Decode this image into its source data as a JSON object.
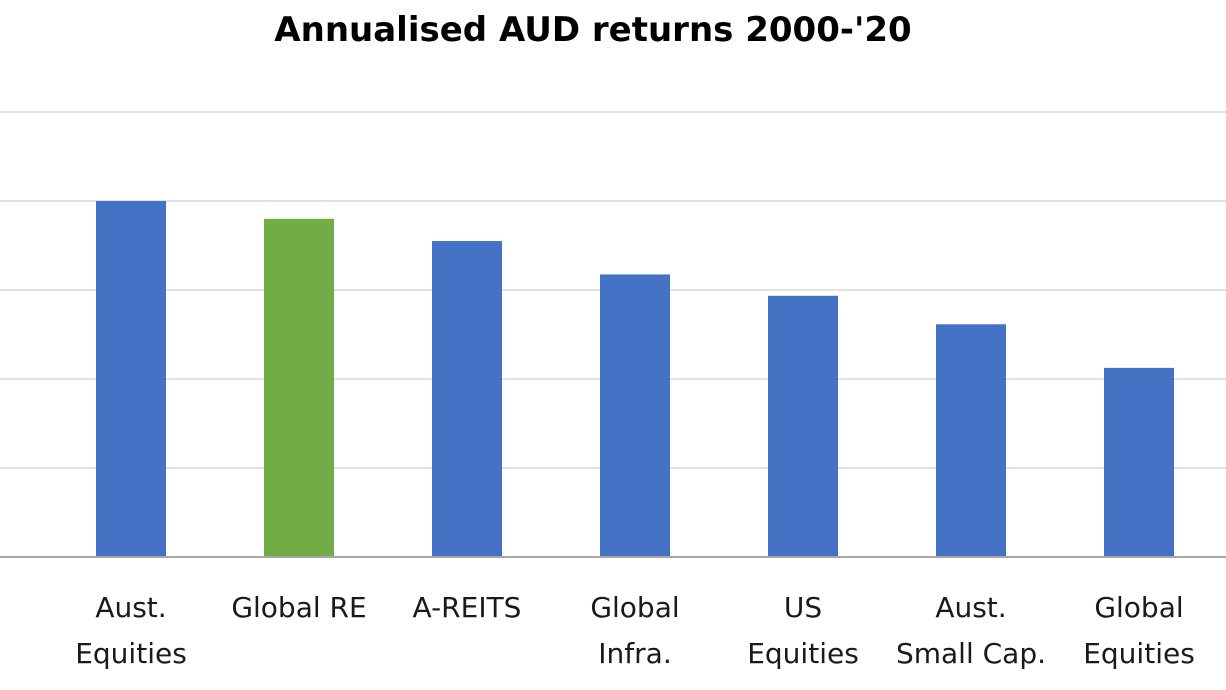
{
  "chart_data": {
    "type": "bar",
    "title": "Annualised AUD returns 2000-'20",
    "xlabel": "",
    "ylabel": "",
    "categories": [
      [
        "Aust.",
        "Equities"
      ],
      [
        "Global RE"
      ],
      [
        "A-REITS"
      ],
      [
        "Global",
        "Infra."
      ],
      [
        "US",
        "Equities"
      ],
      [
        "Aust.",
        "Small Cap."
      ],
      [
        "Global",
        "Equities"
      ]
    ],
    "values": [
      8.0,
      7.6,
      7.1,
      6.35,
      5.87,
      5.23,
      4.25
    ],
    "ylim": [
      0,
      10
    ],
    "grid": true,
    "y_ticks_shown": false,
    "colors": {
      "default_bar": "#4472C4",
      "highlight_bar": "#70AD47",
      "gridline": "#D9D9D9",
      "axis": "#A6A6A6"
    },
    "highlight_index": 1
  }
}
